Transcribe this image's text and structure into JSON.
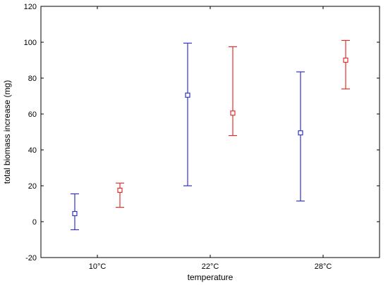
{
  "chart_data": {
    "type": "errorbar",
    "title": "",
    "xlabel": "temperature",
    "ylabel": "total biomass increase (mg)",
    "categories": [
      "10°C",
      "22°C",
      "28°C"
    ],
    "ylim": [
      -20,
      120
    ],
    "yticks": [
      -20,
      0,
      20,
      40,
      60,
      80,
      100,
      120
    ],
    "grid": false,
    "series": [
      {
        "color": "#3333cc",
        "values": [
          4.5,
          70.5,
          49.5
        ],
        "lower": [
          -4.5,
          20,
          11.5
        ],
        "upper": [
          15.5,
          99.5,
          83.5
        ]
      },
      {
        "color": "#e03030",
        "values": [
          17.5,
          60.5,
          90.0
        ],
        "lower": [
          8,
          48,
          74
        ],
        "upper": [
          21.5,
          97.5,
          101
        ]
      }
    ]
  }
}
